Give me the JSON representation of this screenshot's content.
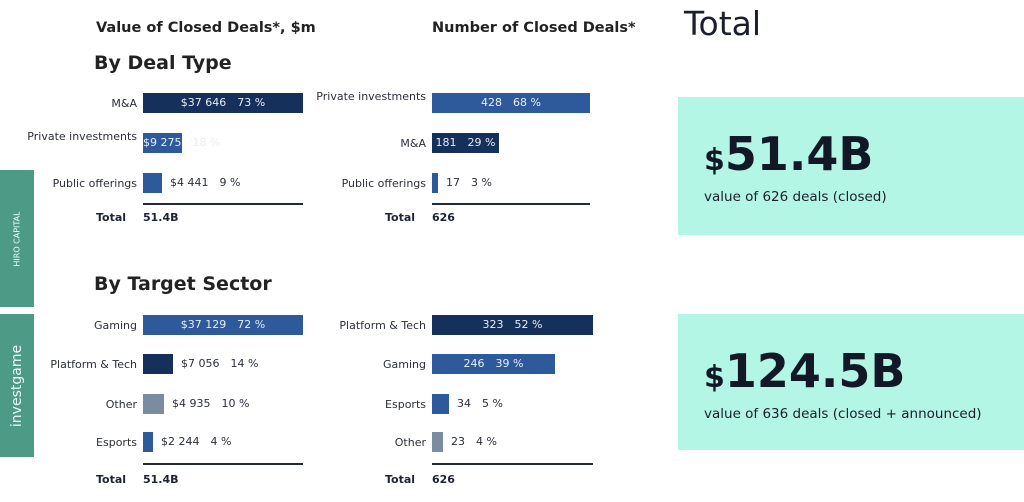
{
  "headers": {
    "value": "Value of Closed Deals*, $m",
    "number": "Number of Closed Deals*",
    "total": "Total"
  },
  "sections": {
    "deal_type": "By Deal Type",
    "target_sector": "By Target Sector"
  },
  "sidebar": {
    "hiro": "HIRO CAPITAL",
    "investgame": "investgame"
  },
  "total_label": "Total",
  "colors": {
    "dark": "#14305b",
    "mid": "#2e5a9c",
    "grey": "#7a8da0",
    "card": "#b4f6e6",
    "side": "#4d9a86"
  },
  "chart_data": [
    {
      "type": "bar",
      "title": "Value of Closed Deals by Deal Type, $m",
      "total": "51.4B",
      "rows": [
        {
          "label": "M&A",
          "value": 37646,
          "value_text": "$37 646",
          "pct": "73 %",
          "color": "dark",
          "inside": true
        },
        {
          "label": "Private investments",
          "value": 9275,
          "value_text": "$9 275",
          "pct": "18 %",
          "color": "mid",
          "inside": true
        },
        {
          "label": "Public offerings",
          "value": 4441,
          "value_text": "$4 441",
          "pct": "9 %",
          "color": "mid",
          "inside": false
        }
      ]
    },
    {
      "type": "bar",
      "title": "Number of Closed Deals by Deal Type",
      "total": "626",
      "rows": [
        {
          "label": "Private investments",
          "value": 428,
          "value_text": "428",
          "pct": "68 %",
          "color": "mid",
          "inside": true
        },
        {
          "label": "M&A",
          "value": 181,
          "value_text": "181",
          "pct": "29 %",
          "color": "dark",
          "inside": true
        },
        {
          "label": "Public offerings",
          "value": 17,
          "value_text": "17",
          "pct": "3 %",
          "color": "mid",
          "inside": false
        }
      ]
    },
    {
      "type": "bar",
      "title": "Value of Closed Deals by Target Sector, $m",
      "total": "51.4B",
      "rows": [
        {
          "label": "Gaming",
          "value": 37129,
          "value_text": "$37 129",
          "pct": "72 %",
          "color": "mid",
          "inside": true
        },
        {
          "label": "Platform & Tech",
          "value": 7056,
          "value_text": "$7 056",
          "pct": "14 %",
          "color": "dark",
          "inside": false
        },
        {
          "label": "Other",
          "value": 4935,
          "value_text": "$4 935",
          "pct": "10 %",
          "color": "grey",
          "inside": false
        },
        {
          "label": "Esports",
          "value": 2244,
          "value_text": "$2 244",
          "pct": "4 %",
          "color": "mid",
          "inside": false
        }
      ]
    },
    {
      "type": "bar",
      "title": "Number of Closed Deals by Target Sector",
      "total": "626",
      "rows": [
        {
          "label": "Platform & Tech",
          "value": 323,
          "value_text": "323",
          "pct": "52 %",
          "color": "dark",
          "inside": true
        },
        {
          "label": "Gaming",
          "value": 246,
          "value_text": "246",
          "pct": "39 %",
          "color": "mid",
          "inside": true
        },
        {
          "label": "Esports",
          "value": 34,
          "value_text": "34",
          "pct": "5 %",
          "color": "mid",
          "inside": false
        },
        {
          "label": "Other",
          "value": 23,
          "value_text": "23",
          "pct": "4 %",
          "color": "grey",
          "inside": false
        }
      ]
    }
  ],
  "cards": [
    {
      "currency": "$",
      "amount": "51.4B",
      "caption": "value of 626 deals (closed)"
    },
    {
      "currency": "$",
      "amount": "124.5B",
      "caption": "value of 636 deals (closed + announced)"
    }
  ]
}
